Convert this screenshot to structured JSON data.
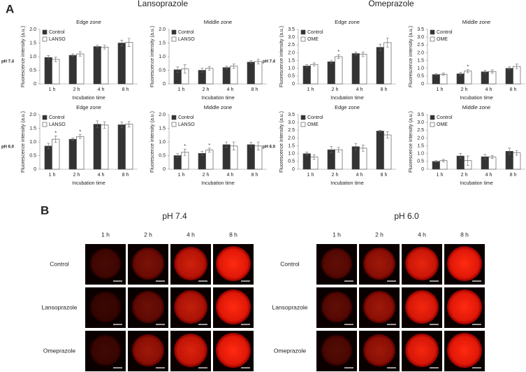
{
  "panel_a": {
    "label": "A",
    "groups": [
      "Lansoprazole",
      "Omeprazole"
    ],
    "rows": [
      "pH 7.4",
      "pH 6.0"
    ]
  },
  "panel_b": {
    "label": "B",
    "groups": [
      "pH 7.4",
      "pH 6.0"
    ],
    "columns": [
      "1 h",
      "2 h",
      "4 h",
      "8 h"
    ],
    "rows": [
      "Control",
      "Lansoprazole",
      "Omeprazole"
    ]
  },
  "chart_data": [
    {
      "type": "bar",
      "title": "Edge zone",
      "ylabel": "Fluorescence intensity (a.u.)",
      "xlabel": "Incubation time",
      "legend": "upper left",
      "categories": [
        "1 h",
        "2 h",
        "4 h",
        "8 h"
      ],
      "ylim": [
        0,
        2
      ],
      "yticks": [
        0,
        0.5,
        {
          "value": 1,
          "label": "1.0"
        },
        1.5,
        {
          "value": 2,
          "label": "2.0"
        }
      ],
      "series": [
        {
          "name": "Control",
          "color": "#333333",
          "values": [
            0.97,
            1.05,
            1.37,
            1.5
          ],
          "errors": [
            0.07,
            0.05,
            0.05,
            0.1
          ]
        },
        {
          "name": "LANSO",
          "color": "#ffffff",
          "values": [
            0.9,
            1.1,
            1.35,
            1.52
          ],
          "errors": [
            0.08,
            0.08,
            0.07,
            0.15
          ]
        }
      ]
    },
    {
      "type": "bar",
      "title": "Middle zone",
      "ylabel": "Fluorescence intensity (a.u.)",
      "xlabel": "Incubation time",
      "legend": "upper left",
      "categories": [
        "1 h",
        "2 h",
        "4 h",
        "8 h"
      ],
      "ylim": [
        0,
        2
      ],
      "yticks": [
        0,
        0.5,
        {
          "value": 1,
          "label": "1.0"
        },
        1.5,
        {
          "value": 2,
          "label": "2.0"
        }
      ],
      "series": [
        {
          "name": "Control",
          "color": "#333333",
          "values": [
            0.52,
            0.5,
            0.6,
            0.8
          ],
          "errors": [
            0.1,
            0.08,
            0.05,
            0.05
          ]
        },
        {
          "name": "LANSO",
          "color": "#ffffff",
          "values": [
            0.55,
            0.57,
            0.65,
            0.82
          ],
          "errors": [
            0.15,
            0.07,
            0.08,
            0.08
          ]
        }
      ]
    },
    {
      "type": "bar",
      "title": "Edge zone",
      "ylabel": "Fluorescence intensity (a.u.)",
      "xlabel": "Incubation time",
      "legend": "upper left",
      "categories": [
        "1 h",
        "2 h",
        "4 h",
        "8 h"
      ],
      "ylim": [
        0,
        3.5
      ],
      "yticks": [
        0,
        0.5,
        {
          "value": 1,
          "label": "1.0"
        },
        1.5,
        {
          "value": 2,
          "label": "2.0"
        },
        2.5,
        {
          "value": 3,
          "label": "3.0"
        },
        3.5
      ],
      "series": [
        {
          "name": "Control",
          "color": "#333333",
          "values": [
            1.15,
            1.42,
            1.95,
            2.35
          ],
          "errors": [
            0.08,
            0.1,
            0.1,
            0.2
          ]
        },
        {
          "name": "OME",
          "color": "#ffffff",
          "values": [
            1.25,
            1.75,
            1.9,
            2.65
          ],
          "errors": [
            0.1,
            0.12,
            0.15,
            0.3
          ],
          "markers": [
            null,
            "*",
            null,
            null
          ]
        }
      ]
    },
    {
      "type": "bar",
      "title": "Middle zone",
      "ylabel": "Fluorescence intensity (a.u.)",
      "xlabel": "Incubation time",
      "legend": "upper left",
      "categories": [
        "1 h",
        "2 h",
        "4 h",
        "8 h"
      ],
      "ylim": [
        0,
        3.5
      ],
      "yticks": [
        0,
        0.5,
        {
          "value": 1,
          "label": "1.0"
        },
        1.5,
        {
          "value": 2,
          "label": "2.0"
        },
        2.5,
        {
          "value": 3,
          "label": "3.0"
        },
        3.5
      ],
      "series": [
        {
          "name": "Control",
          "color": "#333333",
          "values": [
            0.6,
            0.65,
            0.78,
            1.0
          ],
          "errors": [
            0.05,
            0.08,
            0.1,
            0.1
          ]
        },
        {
          "name": "OME",
          "color": "#ffffff",
          "values": [
            0.62,
            0.82,
            0.8,
            1.12
          ],
          "errors": [
            0.08,
            0.1,
            0.1,
            0.15
          ],
          "markers": [
            null,
            "*",
            null,
            null
          ]
        }
      ]
    },
    {
      "type": "bar",
      "title": "Edge zone",
      "ylabel": "Fluorescence intensity (a.u.)",
      "xlabel": "Incubation time",
      "legend": "upper left",
      "categories": [
        "1 h",
        "2 h",
        "4 h",
        "8 h"
      ],
      "ylim": [
        0,
        2
      ],
      "yticks": [
        0,
        0.5,
        {
          "value": 1,
          "label": "1.0"
        },
        1.5,
        {
          "value": 2,
          "label": "2.0"
        }
      ],
      "series": [
        {
          "name": "Control",
          "color": "#333333",
          "values": [
            0.85,
            1.1,
            1.65,
            1.63
          ],
          "errors": [
            0.1,
            0.05,
            0.12,
            0.1
          ]
        },
        {
          "name": "LANSO",
          "color": "#ffffff",
          "values": [
            1.1,
            1.2,
            1.62,
            1.65
          ],
          "errors": [
            0.12,
            0.07,
            0.12,
            0.1
          ],
          "markers": [
            "*",
            "*",
            null,
            null
          ]
        }
      ]
    },
    {
      "type": "bar",
      "title": "Middle zone",
      "ylabel": "Fluorescence intensity (a.u.)",
      "xlabel": "Incubation time",
      "legend": "upper left",
      "categories": [
        "1 h",
        "2 h",
        "4 h",
        "8 h"
      ],
      "ylim": [
        0,
        2
      ],
      "yticks": [
        0,
        0.5,
        {
          "value": 1,
          "label": "1.0"
        },
        1.5,
        {
          "value": 2,
          "label": "2.0"
        }
      ],
      "series": [
        {
          "name": "Control",
          "color": "#333333",
          "values": [
            0.5,
            0.58,
            0.9,
            0.9
          ],
          "errors": [
            0.07,
            0.08,
            0.1,
            0.08
          ]
        },
        {
          "name": "LANSO",
          "color": "#ffffff",
          "values": [
            0.62,
            0.7,
            0.85,
            0.85
          ],
          "errors": [
            0.12,
            0.07,
            0.15,
            0.15
          ],
          "markers": [
            "*",
            "*",
            null,
            null
          ]
        }
      ]
    },
    {
      "type": "bar",
      "title": "Edge zone",
      "ylabel": "Fluorescence intensity (a.u.)",
      "xlabel": "Incubation time",
      "legend": "upper left",
      "categories": [
        "1 h",
        "2 h",
        "4 h",
        "8 h"
      ],
      "ylim": [
        0,
        3.5
      ],
      "yticks": [
        0,
        0.5,
        {
          "value": 1,
          "label": "1.0"
        },
        1.5,
        {
          "value": 2,
          "label": "2.0"
        },
        2.5,
        {
          "value": 3,
          "label": "3.0"
        },
        3.5
      ],
      "series": [
        {
          "name": "Control",
          "color": "#333333",
          "values": [
            1.0,
            1.25,
            1.45,
            2.45
          ],
          "errors": [
            0.1,
            0.2,
            0.2,
            0.05
          ]
        },
        {
          "name": "OME",
          "color": "#ffffff",
          "values": [
            0.78,
            1.25,
            1.35,
            2.2
          ],
          "errors": [
            0.15,
            0.15,
            0.2,
            0.2
          ]
        }
      ]
    },
    {
      "type": "bar",
      "title": "Middle zone",
      "ylabel": "Fluorescence intensity (a.u.)",
      "xlabel": "Incubation time",
      "legend": "upper left",
      "categories": [
        "1 h",
        "2 h",
        "4 h",
        "8 h"
      ],
      "ylim": [
        0,
        3.5
      ],
      "yticks": [
        0,
        0.5,
        {
          "value": 1,
          "label": "1.0"
        },
        1.5,
        {
          "value": 2,
          "label": "2.0"
        },
        2.5,
        {
          "value": 3,
          "label": "3.0"
        },
        3.5
      ],
      "series": [
        {
          "name": "Control",
          "color": "#333333",
          "values": [
            0.5,
            0.85,
            0.8,
            1.15
          ],
          "errors": [
            0.05,
            0.15,
            0.15,
            0.2
          ]
        },
        {
          "name": "OME",
          "color": "#ffffff",
          "values": [
            0.55,
            0.55,
            0.78,
            1.05
          ],
          "errors": [
            0.08,
            0.3,
            0.1,
            0.15
          ]
        }
      ]
    }
  ]
}
